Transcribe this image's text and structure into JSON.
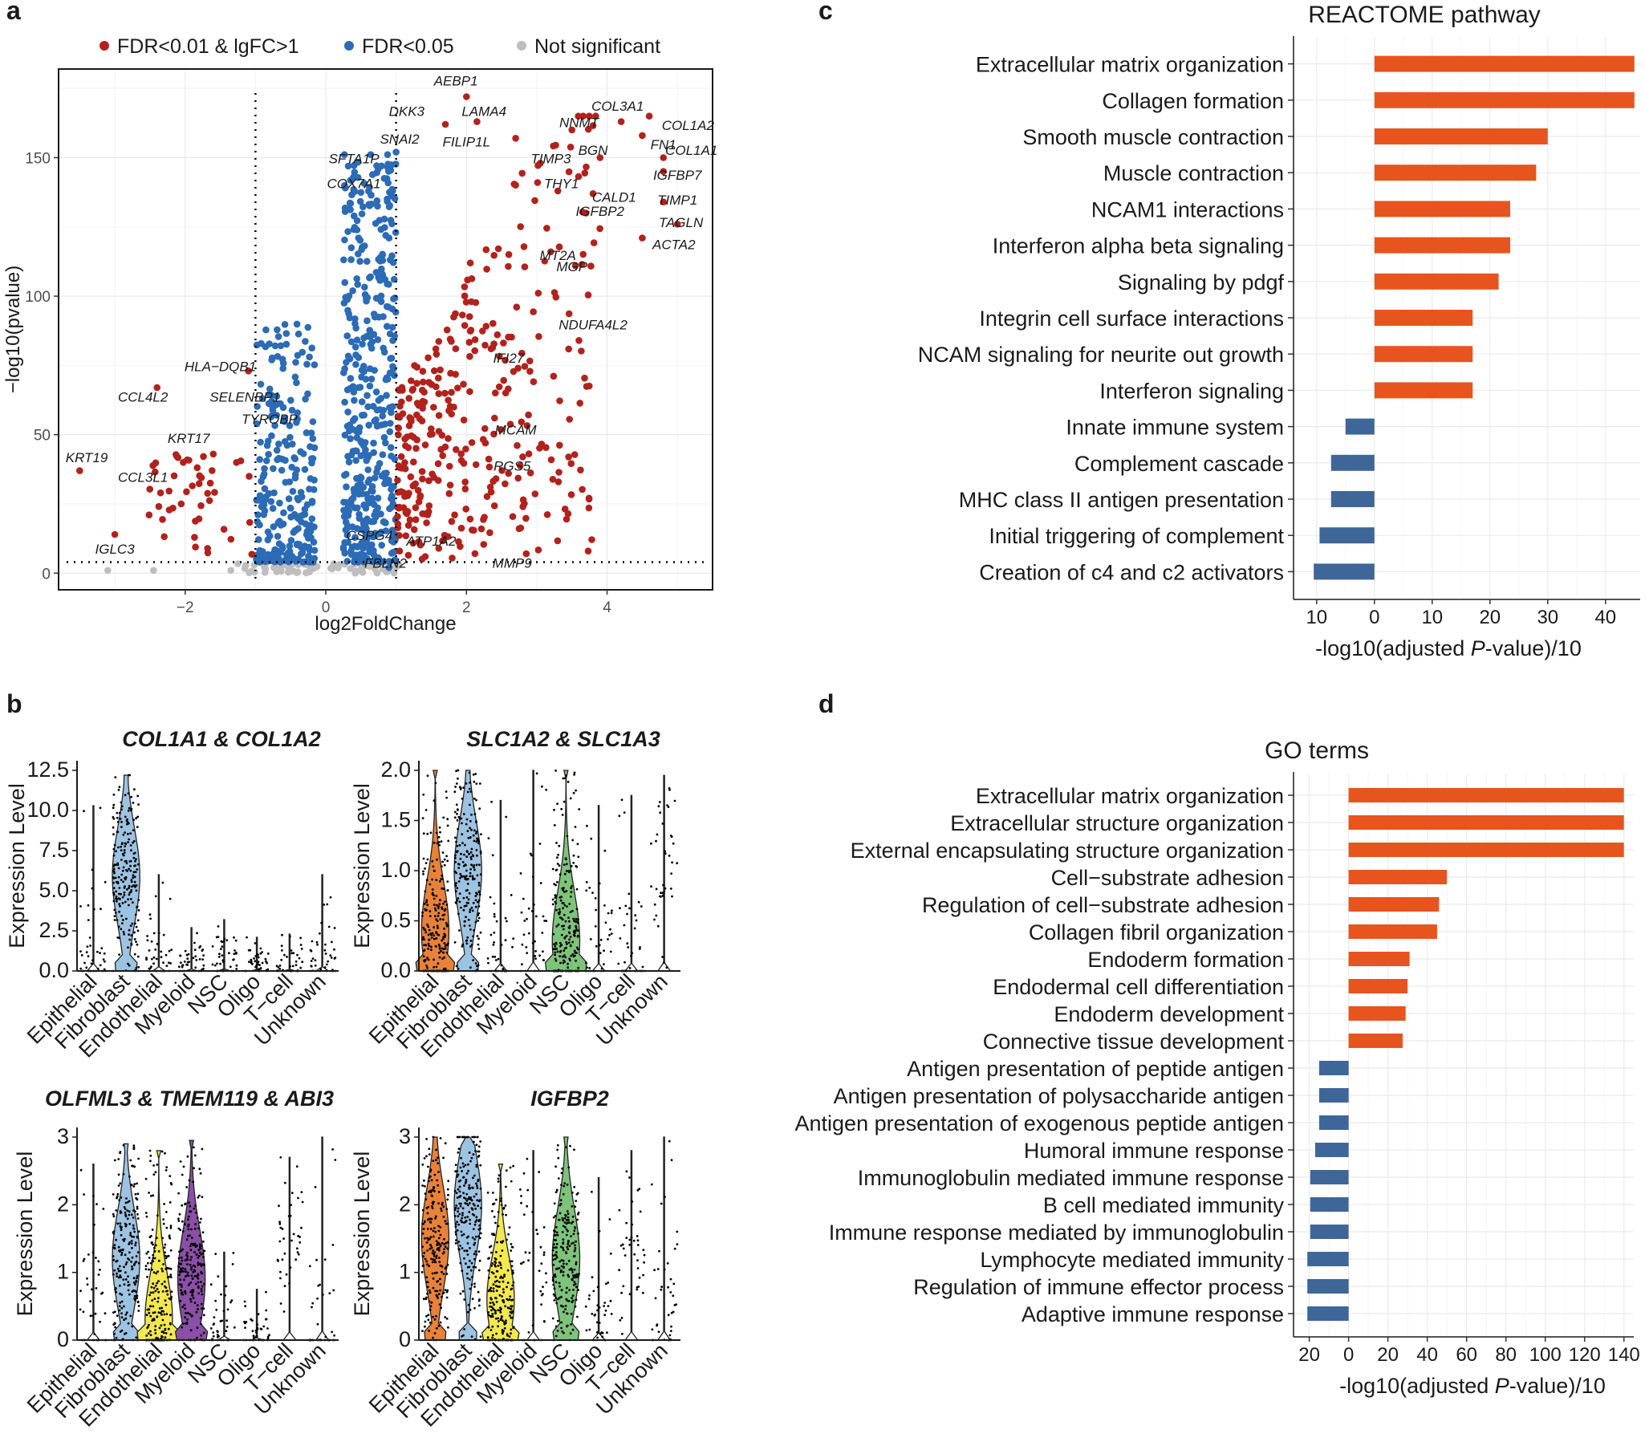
{
  "panels": {
    "a": "a",
    "b": "b",
    "c": "c",
    "d": "d"
  },
  "colors": {
    "red": "#B2221C",
    "blue": "#2C6BB5",
    "grey": "#BEBEBE",
    "orange": "#E8541E",
    "navy": "#3E6699",
    "vFibro": "#9DC3E2",
    "vEpi": "#E8823A",
    "vNSC": "#7DC47A",
    "vEndo": "#F2E850",
    "vMyeloid": "#8A4FA6"
  },
  "chart_data": [
    {
      "type": "scatter",
      "panel": "a",
      "title": "",
      "xlabel": "log2FoldChange",
      "ylabel": "−log10(pvalue)",
      "xlim": [
        -3.8,
        5.5
      ],
      "ylim": [
        -6,
        182
      ],
      "xticks": [
        -2,
        0,
        2,
        4
      ],
      "xtick_labels": [
        "−2",
        "0",
        "2",
        "4"
      ],
      "yticks": [
        0,
        50,
        100,
        150
      ],
      "ytick_labels": [
        "0",
        "50",
        "100",
        "150"
      ],
      "thresholds": {
        "vlines": [
          -1,
          1
        ],
        "hline": 4
      },
      "legend": [
        {
          "label": "FDR<0.01 & lgFC>1",
          "color": "red"
        },
        {
          "label": "FDR<0.05",
          "color": "blue"
        },
        {
          "label": "Not significant",
          "color": "grey"
        }
      ],
      "labeled_points": [
        {
          "gene": "AEBP1",
          "x": 2.0,
          "y": 172,
          "lx": 1.85,
          "ly": 176
        },
        {
          "gene": "COL3A1",
          "x": 4.2,
          "y": 163,
          "lx": 4.15,
          "ly": 167
        },
        {
          "gene": "COL1A2",
          "x": 4.6,
          "y": 165,
          "lx": 5.15,
          "ly": 160
        },
        {
          "gene": "DKK3",
          "x": 1.7,
          "y": 162,
          "lx": 1.15,
          "ly": 165
        },
        {
          "gene": "LAMA4",
          "x": 2.15,
          "y": 163,
          "lx": 2.25,
          "ly": 165
        },
        {
          "gene": "NNMT",
          "x": 3.5,
          "y": 160,
          "lx": 3.6,
          "ly": 161
        },
        {
          "gene": "FN1",
          "x": 4.5,
          "y": 158,
          "lx": 4.8,
          "ly": 153
        },
        {
          "gene": "SNAI2",
          "x": 1.0,
          "y": 152,
          "lx": 1.05,
          "ly": 155
        },
        {
          "gene": "FILIP1L",
          "x": 2.7,
          "y": 157,
          "lx": 2.0,
          "ly": 154
        },
        {
          "gene": "BGN",
          "x": 3.9,
          "y": 150,
          "lx": 3.8,
          "ly": 151
        },
        {
          "gene": "COL1A1",
          "x": 4.8,
          "y": 150,
          "lx": 5.2,
          "ly": 151
        },
        {
          "gene": "SFTA1P",
          "x": 0.9,
          "y": 146,
          "lx": 0.4,
          "ly": 148
        },
        {
          "gene": "TIMP3",
          "x": 3.05,
          "y": 148,
          "lx": 3.2,
          "ly": 148
        },
        {
          "gene": "IGFBP7",
          "x": 4.8,
          "y": 145,
          "lx": 5.0,
          "ly": 142
        },
        {
          "gene": "COX7A1",
          "x": 0.95,
          "y": 138,
          "lx": 0.4,
          "ly": 139
        },
        {
          "gene": "THY1",
          "x": 3.3,
          "y": 138,
          "lx": 3.35,
          "ly": 139
        },
        {
          "gene": "CALD1",
          "x": 3.8,
          "y": 137,
          "lx": 4.1,
          "ly": 134
        },
        {
          "gene": "TIMP1",
          "x": 4.8,
          "y": 134,
          "lx": 5.0,
          "ly": 133
        },
        {
          "gene": "IGFBP2",
          "x": 3.7,
          "y": 130,
          "lx": 3.9,
          "ly": 129
        },
        {
          "gene": "TAGLN",
          "x": 5.0,
          "y": 126,
          "lx": 5.05,
          "ly": 125
        },
        {
          "gene": "ACTA2",
          "x": 4.5,
          "y": 121,
          "lx": 4.95,
          "ly": 117
        },
        {
          "gene": "MT2A",
          "x": 3.2,
          "y": 116,
          "lx": 3.3,
          "ly": 113
        },
        {
          "gene": "MGP",
          "x": 3.55,
          "y": 111,
          "lx": 3.5,
          "ly": 109
        },
        {
          "gene": "NDUFA4L2",
          "x": 3.6,
          "y": 84,
          "lx": 3.8,
          "ly": 88
        },
        {
          "gene": "IFI27",
          "x": 2.35,
          "y": 81,
          "lx": 2.6,
          "ly": 76
        },
        {
          "gene": "HLA−DQB1",
          "x": -1.1,
          "y": 73,
          "lx": -1.5,
          "ly": 73
        },
        {
          "gene": "CCL4L2",
          "x": -2.4,
          "y": 67,
          "lx": -2.6,
          "ly": 62
        },
        {
          "gene": "SELENBP1",
          "x": -0.9,
          "y": 63,
          "lx": -1.15,
          "ly": 62
        },
        {
          "gene": "TYROBP",
          "x": -0.7,
          "y": 57,
          "lx": -0.8,
          "ly": 54
        },
        {
          "gene": "MCAM",
          "x": 2.4,
          "y": 56,
          "lx": 2.7,
          "ly": 50
        },
        {
          "gene": "KRT17",
          "x": -1.6,
          "y": 43,
          "lx": -1.95,
          "ly": 47
        },
        {
          "gene": "RGS5",
          "x": 2.8,
          "y": 42,
          "lx": 2.65,
          "ly": 37
        },
        {
          "gene": "KRT19",
          "x": -3.5,
          "y": 37,
          "lx": -3.4,
          "ly": 40
        },
        {
          "gene": "CCL3L1",
          "x": -2.35,
          "y": 29,
          "lx": -2.6,
          "ly": 33
        },
        {
          "gene": "IGLC3",
          "x": -3.0,
          "y": 14,
          "lx": -3.0,
          "ly": 7
        },
        {
          "gene": "CSPG4",
          "x": 0.7,
          "y": 14,
          "lx": 0.62,
          "ly": 12
        },
        {
          "gene": "ATP1A2",
          "x": 1.05,
          "y": 8,
          "lx": 1.5,
          "ly": 10
        },
        {
          "gene": "FBLN2",
          "x": 0.9,
          "y": 2,
          "lx": 0.85,
          "ly": 2
        },
        {
          "gene": "MMP9",
          "x": 2.85,
          "y": 7,
          "lx": 2.65,
          "ly": 2
        }
      ]
    },
    {
      "type": "violin",
      "panel": "b",
      "title_parts": [
        {
          "t": "COL1A1",
          "it": true
        },
        {
          "t": " & ",
          "it": false
        },
        {
          "t": "COL1A2",
          "it": true
        }
      ],
      "ylabel": "Expression Level",
      "ylim": [
        0,
        12.5
      ],
      "yticks": [
        0,
        2.5,
        5,
        7.5,
        10,
        12.5
      ],
      "ytick_labels": [
        "0.0",
        "2.5",
        "5.0",
        "7.5",
        "10.0",
        "12.5"
      ],
      "categories": [
        "Epithelial",
        "Fibroblast",
        "Endothelial",
        "Myeloid",
        "NSC",
        "Oligo",
        "T−cell",
        "Unknown"
      ],
      "max_values": [
        10.3,
        12.2,
        6.0,
        2.7,
        3.2,
        2.1,
        2.3,
        6.0
      ],
      "medians": [
        0.4,
        5.9,
        0.2,
        0.6,
        0.6,
        0.3,
        0.1,
        1.2
      ],
      "fills": [
        "",
        "vFibro",
        "",
        "",
        "",
        "",
        "",
        ""
      ]
    },
    {
      "type": "violin",
      "panel": "b",
      "title_parts": [
        {
          "t": "SLC1A2",
          "it": true
        },
        {
          "t": " & ",
          "it": false
        },
        {
          "t": "SLC1A3",
          "it": true
        }
      ],
      "ylabel": "Expression Level",
      "ylim": [
        0,
        2
      ],
      "yticks": [
        0,
        0.5,
        1,
        1.5,
        2
      ],
      "ytick_labels": [
        "0.0",
        "0.5",
        "1.0",
        "1.5",
        "2.0"
      ],
      "categories": [
        "Epithelial",
        "Fibroblast",
        "Endothelial",
        "Myeloid",
        "NSC",
        "Oligo",
        "T−cell",
        "Unknown"
      ],
      "max_values": [
        2.0,
        2.0,
        1.7,
        2.0,
        2.0,
        1.65,
        1.75,
        1.95
      ],
      "medians": [
        0.4,
        1.0,
        0.1,
        0.3,
        0.3,
        0.2,
        0.1,
        0.9
      ],
      "fills": [
        "vEpi",
        "vFibro",
        "",
        "",
        "vNSC",
        "",
        "",
        ""
      ]
    },
    {
      "type": "violin",
      "panel": "b",
      "title_parts": [
        {
          "t": "OLFML3",
          "it": true
        },
        {
          "t": " & ",
          "it": false
        },
        {
          "t": "TMEM119",
          "it": true
        },
        {
          "t": " & ",
          "it": false
        },
        {
          "t": "ABI3",
          "it": true
        }
      ],
      "ylabel": "Expression Level",
      "ylim": [
        0,
        3
      ],
      "yticks": [
        0,
        1,
        2,
        3
      ],
      "ytick_labels": [
        "0",
        "1",
        "2",
        "3"
      ],
      "categories": [
        "Epithelial",
        "Fibroblast",
        "Endothelial",
        "Myeloid",
        "NSC",
        "Oligo",
        "T−cell",
        "Unknown"
      ],
      "max_values": [
        2.6,
        2.9,
        2.8,
        2.95,
        1.3,
        0.75,
        2.7,
        3.0
      ],
      "medians": [
        0.3,
        1.2,
        0.3,
        0.9,
        0.2,
        0.1,
        1.4,
        0.1
      ],
      "fills": [
        "",
        "vFibro",
        "vEndo",
        "vMyeloid",
        "",
        "",
        "",
        ""
      ]
    },
    {
      "type": "violin",
      "panel": "b",
      "title_parts": [
        {
          "t": "IGFBP2",
          "it": true
        }
      ],
      "ylabel": "Expression Level",
      "ylim": [
        0,
        3
      ],
      "yticks": [
        0,
        1,
        2,
        3
      ],
      "ytick_labels": [
        "0",
        "1",
        "2",
        "3"
      ],
      "categories": [
        "Epithelial",
        "Fibroblast",
        "Endothelial",
        "Myeloid",
        "NSC",
        "Oligo",
        "T−cell",
        "Unknown"
      ],
      "max_values": [
        3.0,
        3.0,
        2.6,
        2.8,
        3.0,
        2.4,
        2.8,
        3.0
      ],
      "medians": [
        1.5,
        2.0,
        0.6,
        0.9,
        1.2,
        0.4,
        1.4,
        0.6
      ],
      "fills": [
        "vEpi",
        "vFibro",
        "vEndo",
        "",
        "vNSC",
        "",
        "",
        ""
      ]
    },
    {
      "type": "bar",
      "orientation": "horizontal",
      "panel": "c",
      "title": "REACTOME pathway",
      "xlabel_parts": [
        {
          "t": "-log10(adjusted ",
          "it": false
        },
        {
          "t": "P",
          "it": true
        },
        {
          "t": "-value)/10",
          "it": false
        }
      ],
      "xlim": [
        -14,
        46
      ],
      "xticks": [
        -10,
        0,
        10,
        20,
        30,
        40
      ],
      "xtick_labels": [
        "10",
        "0",
        "10",
        "20",
        "30",
        "40"
      ],
      "categories": [
        "Extracellular matrix organization",
        "Collagen formation",
        "Smooth muscle contraction",
        "Muscle contraction",
        "NCAM1 interactions",
        "Interferon alpha beta signaling",
        "Signaling by pdgf",
        "Integrin cell surface interactions",
        "NCAM signaling for neurite out growth",
        "Interferon signaling",
        "Innate immune system",
        "Complement cascade",
        "MHC class II antigen presentation",
        "Initial triggering of complement",
        "Creation of c4 and c2 activators"
      ],
      "values": [
        45,
        45,
        30,
        28,
        23.5,
        23.5,
        21.5,
        17,
        17,
        17,
        -5,
        -7.5,
        -7.5,
        -9.5,
        -10.5
      ]
    },
    {
      "type": "bar",
      "orientation": "horizontal",
      "panel": "d",
      "title": "GO terms",
      "xlabel_parts": [
        {
          "t": "-log10(adjusted ",
          "it": false
        },
        {
          "t": "P",
          "it": true
        },
        {
          "t": "-value)/10",
          "it": false
        }
      ],
      "xlim": [
        -28,
        145
      ],
      "xticks": [
        -20,
        0,
        20,
        40,
        60,
        80,
        100,
        120,
        140
      ],
      "xtick_labels": [
        "20",
        "0",
        "20",
        "40",
        "60",
        "80",
        "100",
        "120",
        "140"
      ],
      "categories": [
        "Extracellular matrix organization",
        "Extracellular structure organization",
        "External encapsulating structure organization",
        "Cell−substrate adhesion",
        "Regulation of cell−substrate adhesion",
        "Collagen fibril organization",
        "Endoderm formation",
        "Endodermal cell differentiation",
        "Endoderm development",
        "Connective tissue development",
        "Antigen presentation of peptide antigen",
        "Antigen presentation of polysaccharide antigen",
        "Antigen presentation of exogenous peptide antigen",
        "Humoral immune response",
        "Immunoglobulin mediated immune response",
        "B cell mediated immunity",
        "Immune response mediated by immunoglobulin",
        "Lymphocyte mediated immunity",
        "Regulation of immune effector process",
        "Adaptive immune response"
      ],
      "values": [
        140,
        140,
        140,
        50,
        46,
        45,
        31,
        30,
        29,
        27.5,
        -15,
        -15,
        -15,
        -17,
        -19.5,
        -19.5,
        -19.5,
        -21,
        -21,
        -21
      ]
    }
  ]
}
